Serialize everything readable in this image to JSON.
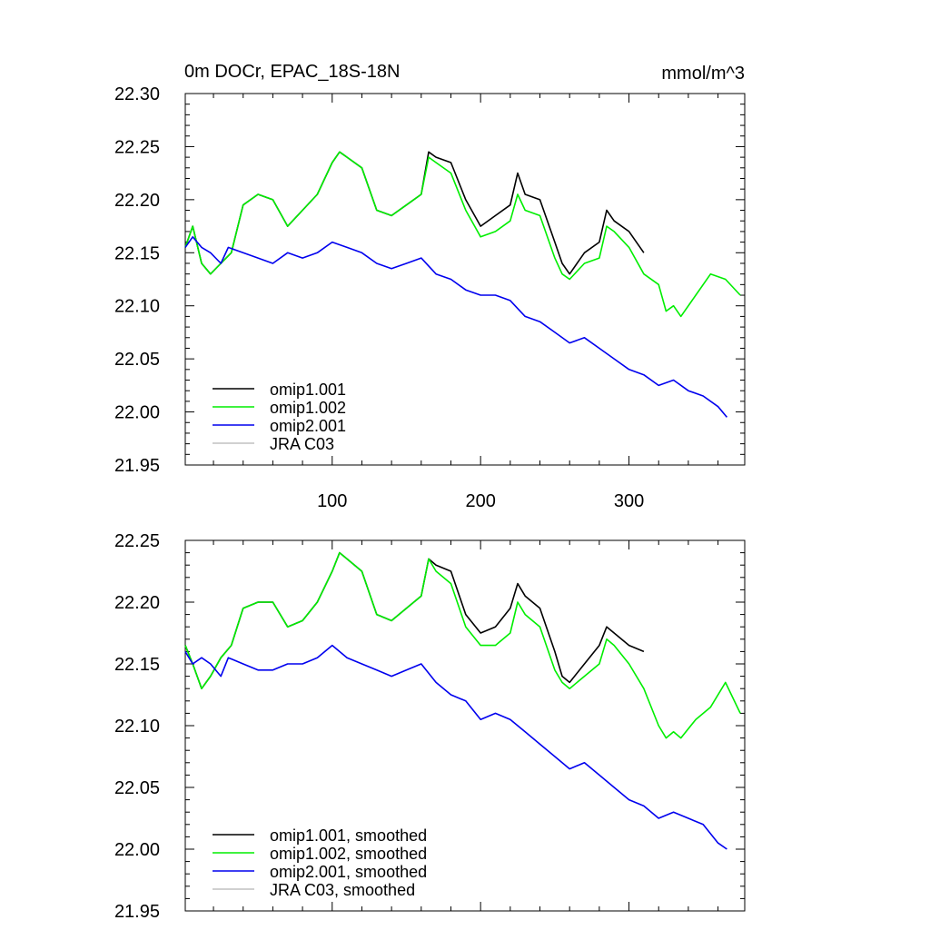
{
  "header": {
    "title": "0m DOCr, EPAC_18S-18N",
    "units": "mmol/m^3"
  },
  "chart_data": [
    {
      "type": "line",
      "title": "0m DOCr, EPAC_18S-18N",
      "units": "mmol/m^3",
      "xlim": [
        1,
        378
      ],
      "ylim": [
        21.95,
        22.3
      ],
      "yticks": [
        "22.30",
        "22.25",
        "22.20",
        "22.15",
        "22.10",
        "22.05",
        "22.00",
        "21.95"
      ],
      "xticks": [
        "100",
        "200",
        "300"
      ],
      "legend_position": "bottom-left",
      "series": [
        {
          "name": "omip1.001",
          "color": "#000000",
          "x": [
            1,
            6,
            12,
            18,
            25,
            32,
            40,
            50,
            60,
            70,
            80,
            90,
            100,
            105,
            110,
            120,
            130,
            140,
            150,
            160,
            165,
            170,
            180,
            190,
            200,
            210,
            220,
            225,
            230,
            240,
            250,
            255,
            260,
            270,
            280,
            285,
            290,
            300,
            310
          ],
          "y": [
            22.155,
            22.175,
            22.14,
            22.13,
            22.14,
            22.15,
            22.195,
            22.205,
            22.2,
            22.175,
            22.19,
            22.205,
            22.235,
            22.245,
            22.24,
            22.23,
            22.19,
            22.185,
            22.195,
            22.205,
            22.245,
            22.24,
            22.235,
            22.2,
            22.175,
            22.185,
            22.195,
            22.225,
            22.205,
            22.2,
            22.16,
            22.14,
            22.13,
            22.15,
            22.16,
            22.19,
            22.18,
            22.17,
            22.15
          ]
        },
        {
          "name": "omip1.002",
          "color": "#00ee00",
          "x": [
            1,
            6,
            12,
            18,
            25,
            32,
            40,
            50,
            60,
            70,
            80,
            90,
            100,
            105,
            110,
            120,
            130,
            140,
            150,
            160,
            165,
            170,
            180,
            190,
            200,
            210,
            220,
            225,
            230,
            240,
            250,
            255,
            260,
            270,
            280,
            285,
            290,
            300,
            310,
            320,
            325,
            330,
            335,
            345,
            355,
            365,
            375
          ],
          "y": [
            22.155,
            22.175,
            22.14,
            22.13,
            22.14,
            22.15,
            22.195,
            22.205,
            22.2,
            22.175,
            22.19,
            22.205,
            22.235,
            22.245,
            22.24,
            22.23,
            22.19,
            22.185,
            22.195,
            22.205,
            22.24,
            22.235,
            22.225,
            22.19,
            22.165,
            22.17,
            22.18,
            22.205,
            22.19,
            22.185,
            22.145,
            22.13,
            22.125,
            22.14,
            22.145,
            22.175,
            22.17,
            22.155,
            22.13,
            22.12,
            22.095,
            22.1,
            22.09,
            22.11,
            22.13,
            22.125,
            22.11
          ]
        },
        {
          "name": "omip2.001",
          "color": "#0000ee",
          "x": [
            1,
            6,
            12,
            18,
            25,
            30,
            40,
            50,
            60,
            70,
            80,
            90,
            100,
            110,
            120,
            130,
            140,
            150,
            160,
            170,
            180,
            190,
            200,
            210,
            220,
            230,
            240,
            250,
            260,
            270,
            280,
            290,
            300,
            310,
            320,
            330,
            340,
            350,
            360,
            366
          ],
          "y": [
            22.155,
            22.165,
            22.155,
            22.15,
            22.14,
            22.155,
            22.15,
            22.145,
            22.14,
            22.15,
            22.145,
            22.15,
            22.16,
            22.155,
            22.15,
            22.14,
            22.135,
            22.14,
            22.145,
            22.13,
            22.125,
            22.115,
            22.11,
            22.11,
            22.105,
            22.09,
            22.085,
            22.075,
            22.065,
            22.07,
            22.06,
            22.05,
            22.04,
            22.035,
            22.025,
            22.03,
            22.02,
            22.015,
            22.005,
            21.995
          ]
        },
        {
          "name": "JRA C03",
          "color": "#c0c0c0",
          "x": [],
          "y": []
        }
      ]
    },
    {
      "type": "line",
      "title": "",
      "xlim": [
        1,
        378
      ],
      "ylim": [
        21.95,
        22.25
      ],
      "yticks": [
        "22.25",
        "22.20",
        "22.15",
        "22.10",
        "22.05",
        "22.00",
        "21.95"
      ],
      "xticks": [],
      "legend_position": "bottom-left",
      "series": [
        {
          "name": "omip1.001, smoothed",
          "color": "#000000",
          "x": [
            1,
            6,
            12,
            18,
            25,
            32,
            40,
            50,
            60,
            70,
            80,
            90,
            100,
            105,
            110,
            120,
            130,
            140,
            150,
            160,
            165,
            170,
            180,
            190,
            200,
            210,
            220,
            225,
            230,
            240,
            250,
            255,
            260,
            270,
            280,
            285,
            290,
            300,
            310
          ],
          "y": [
            22.165,
            22.15,
            22.13,
            22.14,
            22.155,
            22.165,
            22.195,
            22.2,
            22.2,
            22.18,
            22.185,
            22.2,
            22.225,
            22.24,
            22.235,
            22.225,
            22.19,
            22.185,
            22.195,
            22.205,
            22.235,
            22.23,
            22.225,
            22.19,
            22.175,
            22.18,
            22.195,
            22.215,
            22.205,
            22.195,
            22.16,
            22.14,
            22.135,
            22.15,
            22.165,
            22.18,
            22.175,
            22.165,
            22.16
          ]
        },
        {
          "name": "omip1.002, smoothed",
          "color": "#00ee00",
          "x": [
            1,
            6,
            12,
            18,
            25,
            32,
            40,
            50,
            60,
            70,
            80,
            90,
            100,
            105,
            110,
            120,
            130,
            140,
            150,
            160,
            165,
            170,
            180,
            190,
            200,
            210,
            220,
            225,
            230,
            240,
            250,
            255,
            260,
            270,
            280,
            285,
            290,
            300,
            310,
            320,
            325,
            330,
            335,
            345,
            355,
            365,
            375
          ],
          "y": [
            22.165,
            22.15,
            22.13,
            22.14,
            22.155,
            22.165,
            22.195,
            22.2,
            22.2,
            22.18,
            22.185,
            22.2,
            22.225,
            22.24,
            22.235,
            22.225,
            22.19,
            22.185,
            22.195,
            22.205,
            22.235,
            22.225,
            22.215,
            22.18,
            22.165,
            22.165,
            22.175,
            22.2,
            22.19,
            22.18,
            22.145,
            22.135,
            22.13,
            22.14,
            22.15,
            22.17,
            22.165,
            22.15,
            22.13,
            22.1,
            22.09,
            22.095,
            22.09,
            22.105,
            22.115,
            22.135,
            22.11
          ]
        },
        {
          "name": "omip2.001, smoothed",
          "color": "#0000ee",
          "x": [
            1,
            6,
            12,
            18,
            25,
            30,
            40,
            50,
            60,
            70,
            80,
            90,
            100,
            110,
            120,
            130,
            140,
            150,
            160,
            170,
            180,
            190,
            200,
            210,
            220,
            230,
            240,
            250,
            260,
            270,
            280,
            290,
            300,
            310,
            320,
            330,
            340,
            350,
            360,
            366
          ],
          "y": [
            22.16,
            22.15,
            22.155,
            22.15,
            22.14,
            22.155,
            22.15,
            22.145,
            22.145,
            22.15,
            22.15,
            22.155,
            22.165,
            22.155,
            22.15,
            22.145,
            22.14,
            22.145,
            22.15,
            22.135,
            22.125,
            22.12,
            22.105,
            22.11,
            22.105,
            22.095,
            22.085,
            22.075,
            22.065,
            22.07,
            22.06,
            22.05,
            22.04,
            22.035,
            22.025,
            22.03,
            22.025,
            22.02,
            22.005,
            22.0
          ]
        },
        {
          "name": "JRA C03, smoothed",
          "color": "#c0c0c0",
          "x": [],
          "y": []
        }
      ]
    }
  ]
}
